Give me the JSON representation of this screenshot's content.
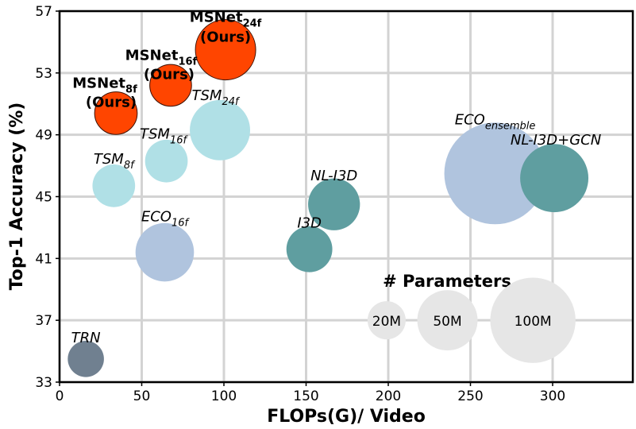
{
  "chart_data": {
    "type": "scatter",
    "subtype": "bubble",
    "xlabel": "FLOPs(G)/ Video",
    "ylabel": "Top-1 Accuracy (%)",
    "xlim": [
      0,
      350
    ],
    "ylim": [
      33,
      57
    ],
    "xticks": [
      0,
      50,
      100,
      150,
      200,
      250,
      300
    ],
    "yticks": [
      33,
      37,
      41,
      45,
      49,
      53,
      57
    ],
    "grid": true,
    "points": [
      {
        "name": "ECO",
        "sub": "ensemble",
        "note": "",
        "x": 265,
        "y": 46.5,
        "params": 142,
        "color": "#B0C4DE",
        "edge": "none",
        "bold": false
      },
      {
        "name": "NL-I3D+GCN",
        "sub": "",
        "note": "",
        "x": 301,
        "y": 46.2,
        "params": 64,
        "color": "#5F9EA0",
        "edge": "none",
        "bold": false
      },
      {
        "name": "NL-I3D",
        "sub": "",
        "note": "",
        "x": 167,
        "y": 44.5,
        "params": 37,
        "color": "#5F9EA0",
        "edge": "none",
        "bold": false
      },
      {
        "name": "I3D",
        "sub": "",
        "note": "",
        "x": 152,
        "y": 41.6,
        "params": 29,
        "color": "#5F9EA0",
        "edge": "none",
        "bold": false
      },
      {
        "name": "ECO",
        "sub": "16f",
        "note": "",
        "x": 64,
        "y": 41.4,
        "params": 47,
        "color": "#B0C4DE",
        "edge": "none",
        "bold": false
      },
      {
        "name": "TRN",
        "sub": "",
        "note": "",
        "x": 16,
        "y": 34.5,
        "params": 18,
        "color": "#708090",
        "edge": "none",
        "bold": false
      },
      {
        "name": "TSM",
        "sub": "8f",
        "note": "",
        "x": 33,
        "y": 45.7,
        "params": 25,
        "color": "#B0E0E6",
        "edge": "none",
        "bold": false
      },
      {
        "name": "TSM",
        "sub": "16f",
        "note": "",
        "x": 65,
        "y": 47.3,
        "params": 25,
        "color": "#B0E0E6",
        "edge": "none",
        "bold": false
      },
      {
        "name": "TSM",
        "sub": "24f",
        "note": "",
        "x": 97.6,
        "y": 49.3,
        "params": 50,
        "color": "#B0E0E6",
        "edge": "none",
        "bold": false
      },
      {
        "name": "MSNet",
        "sub": "8f",
        "note": "(Ours)",
        "x": 34.3,
        "y": 50.4,
        "params": 25,
        "color": "#FF4500",
        "edge": "#3a1000",
        "bold": true
      },
      {
        "name": "MSNet",
        "sub": "16f",
        "note": "(Ours)",
        "x": 67.6,
        "y": 52.2,
        "params": 24,
        "color": "#FF4500",
        "edge": "#3a1000",
        "bold": true
      },
      {
        "name": "MSNet",
        "sub": "24f",
        "note": "(Ours)",
        "x": 101,
        "y": 54.5,
        "params": 50,
        "color": "#FF4500",
        "edge": "#3a1000",
        "bold": true
      }
    ],
    "size_legend": {
      "title": "# Parameters",
      "color": "#E6E6E6",
      "y": 37,
      "entries": [
        {
          "label": "20M",
          "params": 20,
          "x": 199
        },
        {
          "label": "50M",
          "params": 50,
          "x": 236
        },
        {
          "label": "100M",
          "params": 100,
          "x": 288
        }
      ]
    }
  }
}
